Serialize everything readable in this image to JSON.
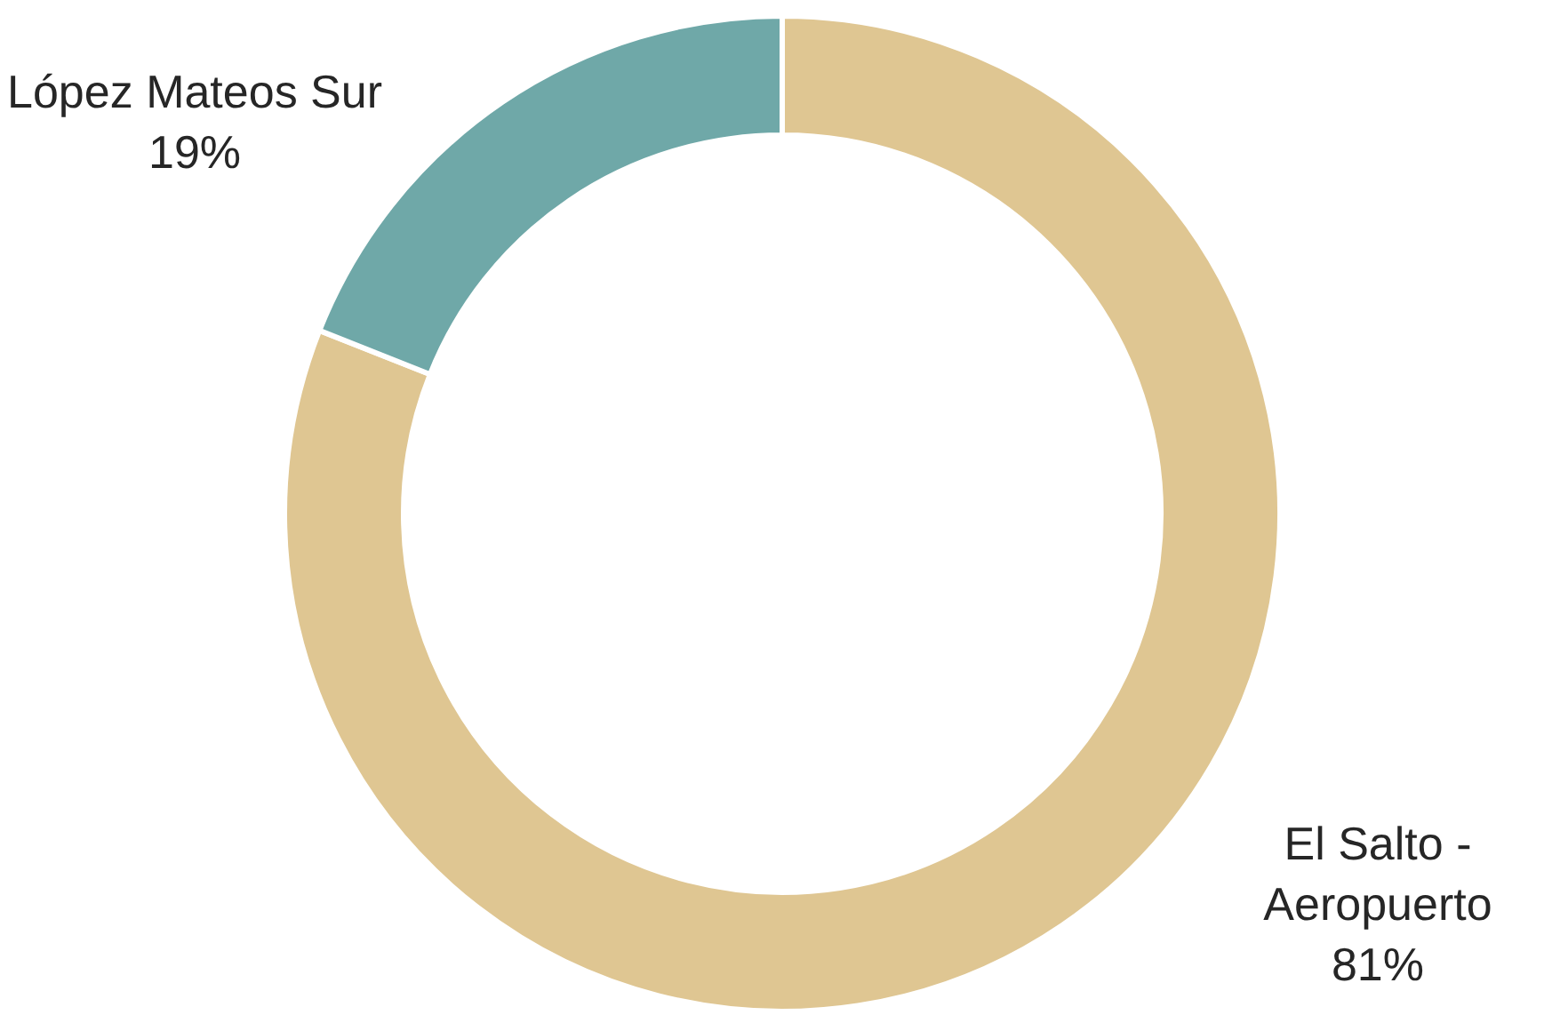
{
  "chart_data": {
    "type": "donut",
    "categories": [
      "El Salto - Aeropuerto",
      "López Mateos Sur"
    ],
    "values": [
      81,
      19
    ],
    "value_labels": [
      "81%",
      "19%"
    ],
    "colors": [
      "#dfc692",
      "#6fa8a8"
    ]
  }
}
